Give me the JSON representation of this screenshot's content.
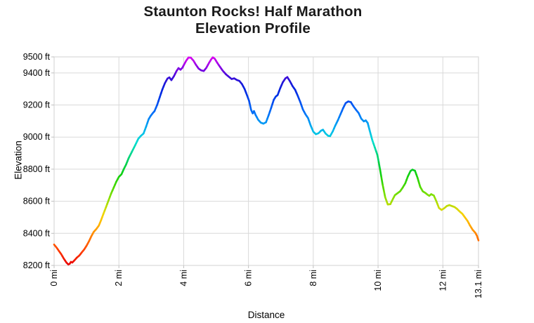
{
  "title": {
    "line1": "Staunton Rocks! Half Marathon",
    "line2": "Elevation Profile"
  },
  "chart_data": {
    "type": "line",
    "title": "Staunton Rocks! Half Marathon Elevation Profile",
    "xlabel": "Distance",
    "ylabel": "Elevation",
    "xlim": [
      0,
      13.1
    ],
    "ylim": [
      8200,
      9500
    ],
    "grid": true,
    "legend": "none",
    "line_width": 2.6,
    "x_ticks": [
      {
        "v": 0,
        "label": "0 mi"
      },
      {
        "v": 2,
        "label": "2 mi"
      },
      {
        "v": 4,
        "label": "4 mi"
      },
      {
        "v": 6,
        "label": "6 mi"
      },
      {
        "v": 8,
        "label": "8 mi"
      },
      {
        "v": 10,
        "label": "10 mi"
      },
      {
        "v": 12,
        "label": "12 mi"
      },
      {
        "v": 13.1,
        "label": "13.1 mi"
      }
    ],
    "y_ticks": [
      {
        "v": 9500,
        "label": "9500 ft"
      },
      {
        "v": 9400,
        "label": "9400 ft"
      },
      {
        "v": 9200,
        "label": "9200 ft"
      },
      {
        "v": 9000,
        "label": "9000 ft"
      },
      {
        "v": 8800,
        "label": "8800 ft"
      },
      {
        "v": 8600,
        "label": "8600 ft"
      },
      {
        "v": 8400,
        "label": "8400 ft"
      },
      {
        "v": 8200,
        "label": "8200 ft"
      }
    ],
    "elevation_colormap": [
      [
        8200,
        "#e80000"
      ],
      [
        8290,
        "#ff3c00"
      ],
      [
        8380,
        "#ff7c00"
      ],
      [
        8460,
        "#ffb400"
      ],
      [
        8520,
        "#f4d400"
      ],
      [
        8570,
        "#c0dc00"
      ],
      [
        8630,
        "#84e000"
      ],
      [
        8700,
        "#44d800"
      ],
      [
        8770,
        "#10d010"
      ],
      [
        8840,
        "#00d050"
      ],
      [
        8910,
        "#00d898"
      ],
      [
        8970,
        "#00dcd0"
      ],
      [
        9030,
        "#00c0e8"
      ],
      [
        9090,
        "#0098f4"
      ],
      [
        9150,
        "#0070f8"
      ],
      [
        9220,
        "#004cf0"
      ],
      [
        9290,
        "#0024e0"
      ],
      [
        9350,
        "#2814d8"
      ],
      [
        9400,
        "#5c04de"
      ],
      [
        9450,
        "#a000e8"
      ],
      [
        9500,
        "#de00f2"
      ]
    ],
    "points": [
      [
        0.0,
        8330
      ],
      [
        0.08,
        8310
      ],
      [
        0.15,
        8290
      ],
      [
        0.22,
        8270
      ],
      [
        0.3,
        8242
      ],
      [
        0.38,
        8218
      ],
      [
        0.44,
        8206
      ],
      [
        0.48,
        8210
      ],
      [
        0.52,
        8222
      ],
      [
        0.56,
        8218
      ],
      [
        0.62,
        8230
      ],
      [
        0.7,
        8248
      ],
      [
        0.78,
        8262
      ],
      [
        0.85,
        8280
      ],
      [
        0.93,
        8300
      ],
      [
        1.0,
        8322
      ],
      [
        1.08,
        8352
      ],
      [
        1.15,
        8382
      ],
      [
        1.22,
        8408
      ],
      [
        1.3,
        8426
      ],
      [
        1.38,
        8448
      ],
      [
        1.45,
        8482
      ],
      [
        1.52,
        8520
      ],
      [
        1.6,
        8562
      ],
      [
        1.68,
        8605
      ],
      [
        1.76,
        8648
      ],
      [
        1.84,
        8685
      ],
      [
        1.92,
        8722
      ],
      [
        2.0,
        8752
      ],
      [
        2.08,
        8768
      ],
      [
        2.15,
        8800
      ],
      [
        2.22,
        8828
      ],
      [
        2.3,
        8868
      ],
      [
        2.4,
        8908
      ],
      [
        2.5,
        8948
      ],
      [
        2.6,
        8990
      ],
      [
        2.68,
        9008
      ],
      [
        2.76,
        9022
      ],
      [
        2.84,
        9065
      ],
      [
        2.92,
        9112
      ],
      [
        2.98,
        9132
      ],
      [
        3.04,
        9148
      ],
      [
        3.1,
        9162
      ],
      [
        3.18,
        9200
      ],
      [
        3.26,
        9248
      ],
      [
        3.34,
        9296
      ],
      [
        3.42,
        9336
      ],
      [
        3.5,
        9365
      ],
      [
        3.56,
        9372
      ],
      [
        3.62,
        9355
      ],
      [
        3.7,
        9380
      ],
      [
        3.78,
        9412
      ],
      [
        3.84,
        9430
      ],
      [
        3.9,
        9420
      ],
      [
        3.96,
        9432
      ],
      [
        4.02,
        9455
      ],
      [
        4.08,
        9477
      ],
      [
        4.15,
        9496
      ],
      [
        4.22,
        9495
      ],
      [
        4.3,
        9477
      ],
      [
        4.38,
        9450
      ],
      [
        4.46,
        9427
      ],
      [
        4.54,
        9416
      ],
      [
        4.62,
        9412
      ],
      [
        4.7,
        9432
      ],
      [
        4.78,
        9462
      ],
      [
        4.85,
        9485
      ],
      [
        4.9,
        9497
      ],
      [
        4.96,
        9488
      ],
      [
        5.04,
        9462
      ],
      [
        5.12,
        9438
      ],
      [
        5.2,
        9415
      ],
      [
        5.3,
        9392
      ],
      [
        5.4,
        9375
      ],
      [
        5.48,
        9362
      ],
      [
        5.56,
        9366
      ],
      [
        5.64,
        9356
      ],
      [
        5.72,
        9350
      ],
      [
        5.8,
        9330
      ],
      [
        5.88,
        9300
      ],
      [
        5.96,
        9258
      ],
      [
        6.02,
        9225
      ],
      [
        6.08,
        9170
      ],
      [
        6.13,
        9148
      ],
      [
        6.17,
        9162
      ],
      [
        6.22,
        9138
      ],
      [
        6.3,
        9108
      ],
      [
        6.38,
        9090
      ],
      [
        6.46,
        9084
      ],
      [
        6.54,
        9092
      ],
      [
        6.62,
        9135
      ],
      [
        6.7,
        9182
      ],
      [
        6.78,
        9232
      ],
      [
        6.84,
        9252
      ],
      [
        6.9,
        9262
      ],
      [
        6.98,
        9305
      ],
      [
        7.06,
        9342
      ],
      [
        7.14,
        9366
      ],
      [
        7.2,
        9374
      ],
      [
        7.28,
        9348
      ],
      [
        7.36,
        9318
      ],
      [
        7.44,
        9295
      ],
      [
        7.52,
        9258
      ],
      [
        7.6,
        9218
      ],
      [
        7.68,
        9172
      ],
      [
        7.76,
        9142
      ],
      [
        7.84,
        9118
      ],
      [
        7.92,
        9072
      ],
      [
        8.0,
        9034
      ],
      [
        8.08,
        9018
      ],
      [
        8.16,
        9024
      ],
      [
        8.24,
        9040
      ],
      [
        8.3,
        9046
      ],
      [
        8.38,
        9022
      ],
      [
        8.46,
        9008
      ],
      [
        8.52,
        9006
      ],
      [
        8.6,
        9035
      ],
      [
        8.68,
        9072
      ],
      [
        8.76,
        9105
      ],
      [
        8.84,
        9142
      ],
      [
        8.92,
        9180
      ],
      [
        9.0,
        9212
      ],
      [
        9.08,
        9222
      ],
      [
        9.16,
        9218
      ],
      [
        9.24,
        9192
      ],
      [
        9.32,
        9170
      ],
      [
        9.4,
        9150
      ],
      [
        9.48,
        9115
      ],
      [
        9.56,
        9098
      ],
      [
        9.62,
        9104
      ],
      [
        9.68,
        9088
      ],
      [
        9.74,
        9042
      ],
      [
        9.82,
        8982
      ],
      [
        9.9,
        8935
      ],
      [
        9.98,
        8888
      ],
      [
        10.06,
        8800
      ],
      [
        10.14,
        8705
      ],
      [
        10.22,
        8625
      ],
      [
        10.3,
        8580
      ],
      [
        10.38,
        8582
      ],
      [
        10.46,
        8615
      ],
      [
        10.52,
        8638
      ],
      [
        10.6,
        8650
      ],
      [
        10.68,
        8662
      ],
      [
        10.76,
        8685
      ],
      [
        10.84,
        8712
      ],
      [
        10.92,
        8755
      ],
      [
        11.0,
        8788
      ],
      [
        11.06,
        8797
      ],
      [
        11.14,
        8790
      ],
      [
        11.22,
        8745
      ],
      [
        11.3,
        8690
      ],
      [
        11.38,
        8662
      ],
      [
        11.46,
        8652
      ],
      [
        11.52,
        8642
      ],
      [
        11.58,
        8634
      ],
      [
        11.64,
        8644
      ],
      [
        11.72,
        8636
      ],
      [
        11.8,
        8600
      ],
      [
        11.88,
        8558
      ],
      [
        11.96,
        8546
      ],
      [
        12.04,
        8556
      ],
      [
        12.12,
        8570
      ],
      [
        12.2,
        8576
      ],
      [
        12.28,
        8570
      ],
      [
        12.36,
        8564
      ],
      [
        12.44,
        8552
      ],
      [
        12.52,
        8536
      ],
      [
        12.6,
        8522
      ],
      [
        12.68,
        8500
      ],
      [
        12.76,
        8478
      ],
      [
        12.84,
        8448
      ],
      [
        12.92,
        8422
      ],
      [
        13.0,
        8404
      ],
      [
        13.05,
        8386
      ],
      [
        13.1,
        8356
      ]
    ]
  },
  "colors": {
    "grid": "#d9d9d9",
    "tick": "#c0c0c0",
    "text": "#000000",
    "background": "#ffffff"
  }
}
